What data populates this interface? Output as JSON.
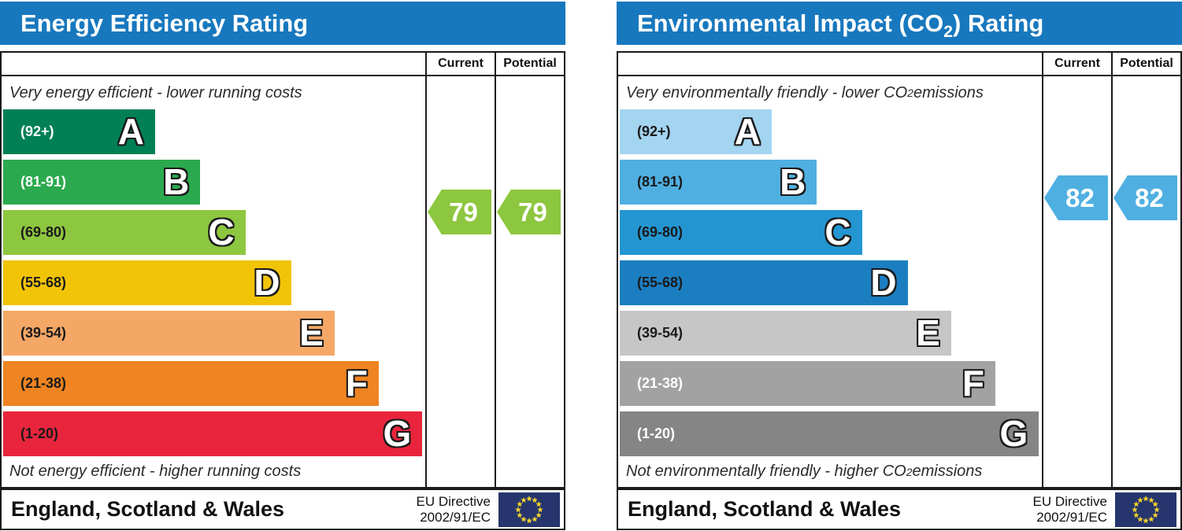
{
  "chart_data": [
    {
      "type": "bar",
      "title": "Energy Efficiency Rating",
      "orientation": "horizontal",
      "categories": [
        "A (92+)",
        "B (81-91)",
        "C (69-80)",
        "D (55-68)",
        "E (39-54)",
        "F (21-38)",
        "G (1-20)"
      ],
      "values": [
        36,
        46.7,
        57.4,
        68.2,
        78.5,
        89,
        99.3
      ],
      "value_note": "bar lengths as percent of band area width",
      "current": 79,
      "potential": 79,
      "current_band": "C",
      "potential_band": "C",
      "top_caption": "Very energy efficient - lower running costs",
      "bottom_caption": "Not energy efficient - higher running costs",
      "footer": "England, Scotland & Wales",
      "directive": "EU Directive 2002/91/EC",
      "legend_position": "none",
      "grid": false
    },
    {
      "type": "bar",
      "title": "Environmental Impact (CO2) Rating",
      "orientation": "horizontal",
      "categories": [
        "A (92+)",
        "B (81-91)",
        "C (69-80)",
        "D (55-68)",
        "E (39-54)",
        "F (21-38)",
        "G (1-20)"
      ],
      "values": [
        36,
        46.7,
        57.4,
        68.2,
        78.5,
        89,
        99.3
      ],
      "value_note": "bar lengths as percent of band area width",
      "current": 82,
      "potential": 82,
      "current_band": "B",
      "potential_band": "B",
      "top_caption": "Very environmentally friendly - lower CO2 emissions",
      "bottom_caption": "Not environmentally friendly - higher CO2 emissions",
      "footer": "England, Scotland & Wales",
      "directive": "EU Directive 2002/91/EC",
      "legend_position": "none",
      "grid": false
    }
  ],
  "charts": [
    {
      "header_color": "#1878be",
      "title": {
        "pre": "Energy Efficiency Rating",
        "sub": "",
        "post": ""
      },
      "columns": {
        "current": "Current",
        "potential": "Potential"
      },
      "caption_top": {
        "pre": "Very energy efficient - lower running costs",
        "sub": "",
        "post": ""
      },
      "caption_bottom": {
        "pre": "Not energy efficient - higher running costs",
        "sub": "",
        "post": ""
      },
      "bands": [
        {
          "letter": "A",
          "range": "(92+)",
          "color": "#008054",
          "label_color": "#ffffff",
          "width_pct": 36
        },
        {
          "letter": "B",
          "range": "(81-91)",
          "color": "#2ba94e",
          "label_color": "#ffffff",
          "width_pct": 46.7
        },
        {
          "letter": "C",
          "range": "(69-80)",
          "color": "#8dc63f",
          "label_color": "#1a1a1a",
          "width_pct": 57.4
        },
        {
          "letter": "D",
          "range": "(55-68)",
          "color": "#f2c408",
          "label_color": "#1a1a1a",
          "width_pct": 68.2
        },
        {
          "letter": "E",
          "range": "(39-54)",
          "color": "#f5a766",
          "label_color": "#1a1a1a",
          "width_pct": 78.5
        },
        {
          "letter": "F",
          "range": "(21-38)",
          "color": "#ee8422",
          "label_color": "#1a1a1a",
          "width_pct": 89
        },
        {
          "letter": "G",
          "range": "(1-20)",
          "color": "#e8253c",
          "label_color": "#1a1a1a",
          "width_pct": 99.3
        }
      ],
      "current": {
        "value": "79",
        "color": "#8dc63f"
      },
      "potential": {
        "value": "79",
        "color": "#8dc63f"
      },
      "footer": {
        "region": "England, Scotland & Wales",
        "directive_line1": "EU Directive",
        "directive_line2": "2002/91/EC"
      }
    },
    {
      "header_color": "#1878be",
      "title": {
        "pre": "Environmental Impact (CO",
        "sub": "2",
        "post": ") Rating"
      },
      "columns": {
        "current": "Current",
        "potential": "Potential"
      },
      "caption_top": {
        "pre": "Very environmentally friendly - lower CO",
        "sub": "2",
        "post": " emissions"
      },
      "caption_bottom": {
        "pre": "Not environmentally friendly - higher CO",
        "sub": "2",
        "post": " emissions"
      },
      "bands": [
        {
          "letter": "A",
          "range": "(92+)",
          "color": "#a3d4f0",
          "label_color": "#1a1a1a",
          "width_pct": 36
        },
        {
          "letter": "B",
          "range": "(81-91)",
          "color": "#4fafe1",
          "label_color": "#1a1a1a",
          "width_pct": 46.7
        },
        {
          "letter": "C",
          "range": "(69-80)",
          "color": "#2396d2",
          "label_color": "#1a1a1a",
          "width_pct": 57.4
        },
        {
          "letter": "D",
          "range": "(55-68)",
          "color": "#1b7ec1",
          "label_color": "#1a1a1a",
          "width_pct": 68.2
        },
        {
          "letter": "E",
          "range": "(39-54)",
          "color": "#c6c6c6",
          "label_color": "#1a1a1a",
          "width_pct": 78.5
        },
        {
          "letter": "F",
          "range": "(21-38)",
          "color": "#a2a2a2",
          "label_color": "#ffffff",
          "width_pct": 89
        },
        {
          "letter": "G",
          "range": "(1-20)",
          "color": "#858585",
          "label_color": "#ffffff",
          "width_pct": 99.3
        }
      ],
      "current": {
        "value": "82",
        "color": "#4fafe1"
      },
      "potential": {
        "value": "82",
        "color": "#4fafe1"
      },
      "footer": {
        "region": "England, Scotland & Wales",
        "directive_line1": "EU Directive",
        "directive_line2": "2002/91/EC"
      }
    }
  ],
  "eu_flag": {
    "background": "#26356d",
    "star_color": "#f6d32d"
  }
}
